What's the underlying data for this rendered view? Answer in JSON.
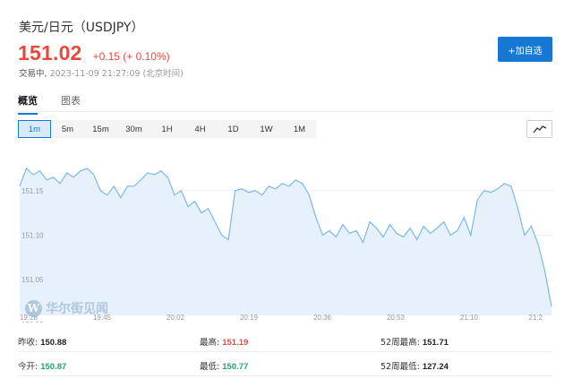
{
  "header": {
    "title": "美元/日元（USDJPY）",
    "price": "151.02",
    "change": "+0.15 (+ 0.10%)",
    "status_state": "交易中,",
    "status_time": "2023-11-09 21:27:09 (北京时间)",
    "add_button": "+加自选"
  },
  "tabs": [
    {
      "label": "概览",
      "active": true
    },
    {
      "label": "图表",
      "active": false
    }
  ],
  "periods": [
    "1m",
    "5m",
    "15m",
    "30m",
    "1H",
    "4H",
    "1D",
    "1W",
    "1M"
  ],
  "active_period": "1m",
  "chart_type_icon": "line-chart-icon",
  "watermark": "华尔街见闻",
  "colors": {
    "up": "#e8483f",
    "down": "#23a375",
    "accent": "#1677d4",
    "line": "#7cb8e8",
    "fill": "#e6f1fb"
  },
  "chart_data": {
    "type": "area",
    "title": "",
    "xlabel": "",
    "ylabel": "",
    "ylim": [
      151.01,
      151.195
    ],
    "yticks": [
      "151.15",
      "151.10",
      "151.05",
      "151.00"
    ],
    "xticks": [
      "19:28",
      "19:45",
      "20:02",
      "20:19",
      "20:36",
      "20:53",
      "21:10",
      "21:2"
    ],
    "grid": true,
    "series": [
      {
        "values": [
          151.155,
          151.175,
          151.168,
          151.172,
          151.162,
          151.165,
          151.158,
          151.17,
          151.165,
          151.172,
          151.175,
          151.168,
          151.15,
          151.145,
          151.155,
          151.142,
          151.155,
          151.155,
          151.162,
          151.17,
          151.168,
          151.172,
          151.165,
          151.145,
          151.15,
          151.132,
          151.138,
          151.125,
          151.13,
          151.115,
          151.1,
          151.095,
          151.15,
          151.152,
          151.148,
          151.15,
          151.145,
          151.155,
          151.152,
          151.158,
          151.155,
          151.162,
          151.158,
          151.145,
          151.12,
          151.1,
          151.105,
          151.098,
          151.112,
          151.102,
          151.105,
          151.092,
          151.115,
          151.108,
          151.098,
          151.112,
          151.102,
          151.098,
          151.108,
          151.095,
          151.11,
          151.102,
          151.108,
          151.115,
          151.1,
          151.105,
          151.12,
          151.1,
          151.14,
          151.15,
          151.148,
          151.152,
          151.158,
          151.155,
          151.13,
          151.1,
          151.11,
          151.09,
          151.06,
          151.02
        ]
      }
    ]
  },
  "stats": [
    [
      {
        "label": "昨收:",
        "value": "150.88",
        "tone": "dark"
      },
      {
        "label": "最高:",
        "value": "151.19",
        "tone": "red"
      },
      {
        "label": "52周最高:",
        "value": "151.71",
        "tone": "dark"
      }
    ],
    [
      {
        "label": "今开:",
        "value": "150.87",
        "tone": "green"
      },
      {
        "label": "最低:",
        "value": "150.77",
        "tone": "green"
      },
      {
        "label": "52周最低:",
        "value": "127.24",
        "tone": "dark"
      }
    ]
  ]
}
